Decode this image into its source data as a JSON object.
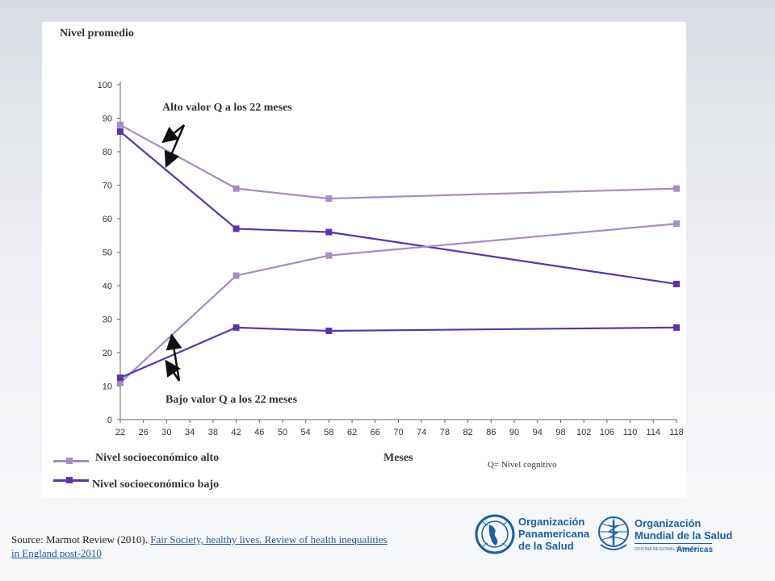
{
  "chart_data": {
    "type": "line",
    "ylabel": "Nivel promedio",
    "xlabel": "Meses",
    "x_ticks": [
      22,
      26,
      30,
      34,
      38,
      42,
      46,
      50,
      54,
      58,
      62,
      66,
      70,
      74,
      78,
      82,
      86,
      90,
      94,
      98,
      102,
      106,
      110,
      114,
      118
    ],
    "y_ticks": [
      0,
      10,
      20,
      30,
      40,
      50,
      60,
      70,
      80,
      90,
      100
    ],
    "xlim": [
      22,
      118
    ],
    "ylim": [
      0,
      100
    ],
    "grid": false,
    "legend_position": "bottom-left",
    "series": [
      {
        "name": "Nivel socioeconómico alto",
        "color": "#a78bc4",
        "group": "alto",
        "x": [
          22,
          42,
          58,
          118
        ],
        "values": [
          88,
          69,
          66,
          69
        ]
      },
      {
        "name": "Nivel socioeconómico bajo",
        "color": "#5b35a8",
        "group": "bajo",
        "x": [
          22,
          42,
          58,
          118
        ],
        "values": [
          86,
          57,
          56,
          40.5
        ]
      },
      {
        "name": "Nivel socioeconómico alto",
        "color": "#a78bc4",
        "group": "alto",
        "x": [
          22,
          42,
          58,
          118
        ],
        "values": [
          11,
          43,
          49,
          58.5
        ]
      },
      {
        "name": "Nivel socioeconómico bajo",
        "color": "#5b35a8",
        "group": "bajo",
        "x": [
          22,
          42,
          58,
          118
        ],
        "values": [
          12.5,
          27.5,
          26.5,
          27.5
        ]
      }
    ],
    "annotations": {
      "high": "Alto valor Q a los 22 meses",
      "low": "Bajo valor Q a los 22 meses",
      "note": "Q= Nivel cognitivo"
    },
    "legend": {
      "high": "Nivel socioeconómico alto",
      "low": "Nivel socioeconómico bajo"
    }
  },
  "source": {
    "prefix": "Source: Marmot Review (2010). ",
    "link": "Fair Society, healthy lives. Review of health inequalities in England post-2010"
  },
  "logos": {
    "paho": [
      "Organización",
      "Panamericana",
      "de la Salud"
    ],
    "who": [
      "Organización",
      "Mundial de la Salud"
    ],
    "who_sub": "OFICINA REGIONAL PARA LAS",
    "who_region": "Américas"
  },
  "colors": {
    "alto": "#a78bc4",
    "bajo": "#5b35a8",
    "logo": "#1b5fa8"
  }
}
